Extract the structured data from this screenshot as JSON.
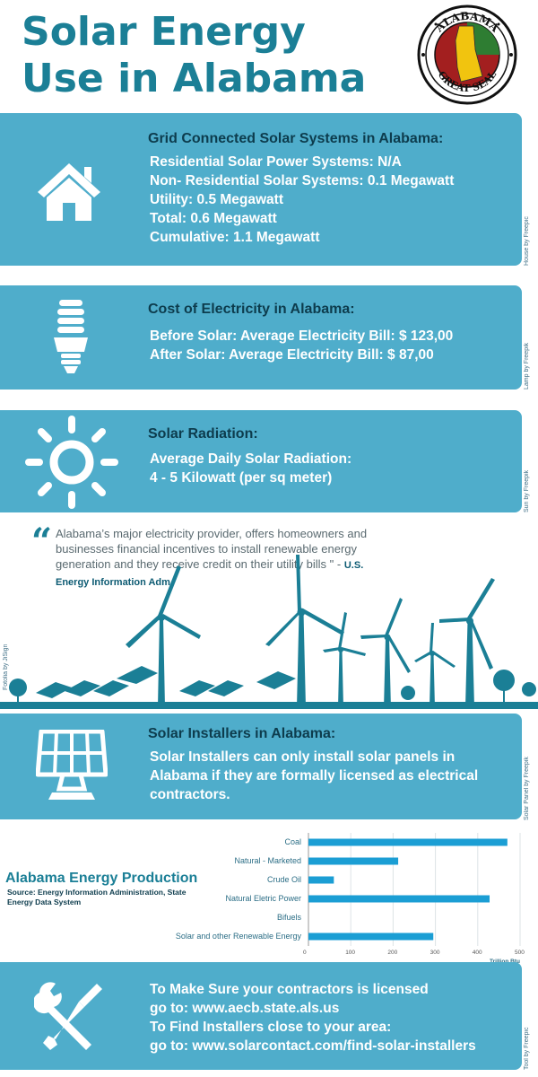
{
  "title": "Solar Energy Use in Alabama",
  "seal": {
    "top_text": "ALABAMA",
    "bottom_text": "GREAT SEAL"
  },
  "grid": {
    "heading": "Grid Connected Solar Systems in Alabama:",
    "lines": [
      "Residential Solar Power Systems: N/A",
      "Non- Residential Solar Systems: 0.1 Megawatt",
      "Utility: 0.5 Megawatt",
      "Total: 0.6 Megawatt",
      "Cumulative: 1.1 Megawatt"
    ],
    "credit": "House by Freepic"
  },
  "cost": {
    "heading": "Cost of Electricity in Alabama:",
    "lines": [
      "Before Solar: Average Electricity Bill: $ 123,00",
      "After Solar: Average Electricity Bill: $ 87,00"
    ],
    "credit": "Lamp by Freepik"
  },
  "radiation": {
    "heading": "Solar Radiation:",
    "lines": [
      "Average Daily Solar Radiation:",
      "4 - 5  Kilowatt (per sq meter)"
    ],
    "credit": "Sun by Freepik"
  },
  "quote": {
    "text": "Alabama’s major electricity provider, offers homeowners and businesses financial incentives to install renewable energy generation and they receive credit on their utility bills \" -",
    "source": "U.S. Energy Information Adm.",
    "credit": "Fotolia by JiSign"
  },
  "installers": {
    "heading": "Solar Installers in Alabama:",
    "text": "Solar Installers can only install solar panels in Alabama if they are formally licensed as electrical contractors.",
    "credit": "Solar Panel  by Freepik"
  },
  "chart_title": "Alabama Energy Production",
  "chart_source": "Source: Energy Information Administration, State Energy Data System",
  "chart_data": {
    "type": "bar",
    "orientation": "horizontal",
    "categories": [
      "Coal",
      "Natural - Marketed",
      "Crude Oil",
      "Natural Eletric Power",
      "Bifuels",
      "Solar and other Renewable Energy"
    ],
    "values": [
      470,
      212,
      60,
      428,
      0,
      295
    ],
    "xlabel": "Trillion Btu",
    "xlim": [
      0,
      500
    ],
    "ticks": [
      0,
      100,
      200,
      300,
      400,
      500
    ],
    "grid": true,
    "color": "#1b9ed4"
  },
  "footer": {
    "lines": [
      "To Make Sure your contractors is licensed",
      "go to: www.aecb.state.als.us",
      "To Find Installers close to your area:",
      "go to: www.solarcontact.com/find-solar-installers"
    ],
    "credit": "Tool by Freepic"
  },
  "colors": {
    "card": "#4fadcb",
    "title": "#1b7f96",
    "dark": "#0d3c4d",
    "bar": "#1b9ed4"
  }
}
